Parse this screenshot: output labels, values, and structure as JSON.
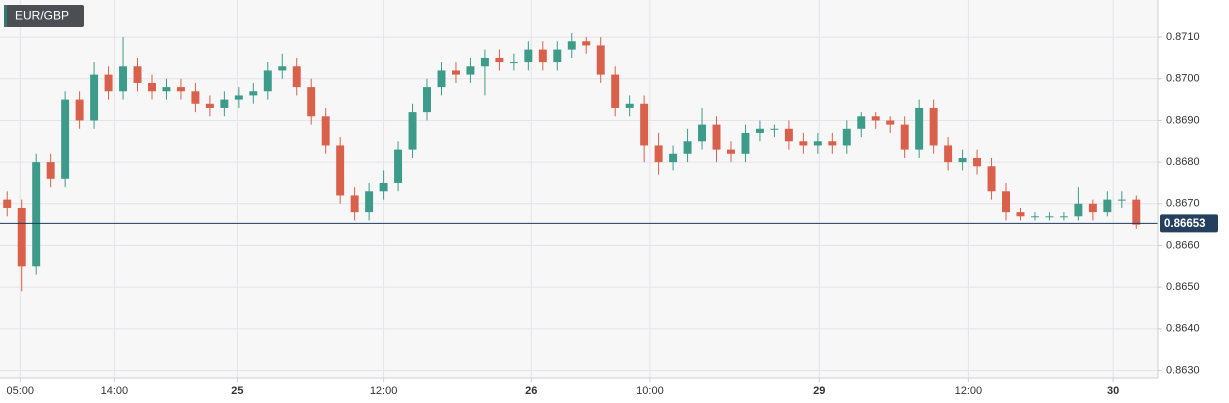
{
  "chart_data": {
    "type": "candlestick",
    "title": "EUR/GBP",
    "up_color": "#3c9c89",
    "down_color": "#d9604a",
    "grid": true,
    "xlim": [
      0,
      80
    ],
    "xticks": [
      {
        "value": 1.4,
        "label": "05:00"
      },
      {
        "value": 7.9,
        "label": "14:00"
      },
      {
        "value": 16.4,
        "label": "25"
      },
      {
        "value": 26.5,
        "label": "12:00"
      },
      {
        "value": 36.7,
        "label": "26"
      },
      {
        "value": 44.9,
        "label": "10:00"
      },
      {
        "value": 56.6,
        "label": "29"
      },
      {
        "value": 66.9,
        "label": "12:00"
      },
      {
        "value": 76.9,
        "label": "30"
      }
    ],
    "ylim": [
      0.86282,
      0.87189
    ],
    "yticks": [
      {
        "value": 0.863,
        "label": "0.8630"
      },
      {
        "value": 0.864,
        "label": "0.8640"
      },
      {
        "value": 0.865,
        "label": "0.8650"
      },
      {
        "value": 0.866,
        "label": "0.8660"
      },
      {
        "value": 0.867,
        "label": "0.8670"
      },
      {
        "value": 0.868,
        "label": "0.8680"
      },
      {
        "value": 0.869,
        "label": "0.8690"
      },
      {
        "value": 0.87,
        "label": "0.8700"
      },
      {
        "value": 0.871,
        "label": "0.8710"
      }
    ],
    "last_price": 0.86653,
    "x": [
      0.5,
      1.5,
      2.5,
      3.5,
      4.5,
      5.5,
      6.5,
      7.5,
      8.5,
      9.5,
      10.5,
      11.5,
      12.5,
      13.5,
      14.5,
      15.5,
      16.5,
      17.5,
      18.5,
      19.5,
      20.5,
      21.5,
      22.5,
      23.5,
      24.5,
      25.5,
      26.5,
      27.5,
      28.5,
      29.5,
      30.5,
      31.5,
      32.5,
      33.5,
      34.5,
      35.5,
      36.5,
      37.5,
      38.5,
      39.5,
      40.5,
      41.5,
      42.5,
      43.5,
      44.5,
      45.5,
      46.5,
      47.5,
      48.5,
      49.5,
      50.5,
      51.5,
      52.5,
      53.5,
      54.5,
      55.5,
      56.5,
      57.5,
      58.5,
      59.5,
      60.5,
      61.5,
      62.5,
      63.5,
      64.5,
      65.5,
      66.5,
      67.5,
      68.5,
      69.5,
      70.5,
      71.5,
      72.5,
      73.5,
      74.5,
      75.5,
      76.5,
      77.5,
      78.5
    ],
    "open": [
      0.8671,
      0.8669,
      0.8655,
      0.868,
      0.8676,
      0.8695,
      0.869,
      0.8701,
      0.8697,
      0.8703,
      0.8699,
      0.8697,
      0.8698,
      0.8697,
      0.8694,
      0.8693,
      0.8695,
      0.8696,
      0.8697,
      0.8702,
      0.8703,
      0.8698,
      0.8691,
      0.8684,
      0.8672,
      0.8668,
      0.8673,
      0.8675,
      0.8683,
      0.8692,
      0.8698,
      0.8702,
      0.8701,
      0.8703,
      0.8705,
      0.8704,
      0.8704,
      0.8707,
      0.8704,
      0.8707,
      0.8709,
      0.8708,
      0.8701,
      0.8693,
      0.8694,
      0.8684,
      0.868,
      0.8682,
      0.8685,
      0.8689,
      0.8683,
      0.8682,
      0.8687,
      0.8688,
      0.8688,
      0.8685,
      0.8684,
      0.8685,
      0.8684,
      0.8688,
      0.8691,
      0.869,
      0.8689,
      0.8683,
      0.8693,
      0.8684,
      0.868,
      0.8681,
      0.8679,
      0.8673,
      0.8668,
      0.8667,
      0.8667,
      0.8667,
      0.8667,
      0.867,
      0.8668,
      0.8671,
      0.8671
    ],
    "high": [
      0.8673,
      0.8671,
      0.8682,
      0.8682,
      0.8697,
      0.8697,
      0.8704,
      0.8703,
      0.871,
      0.8705,
      0.8701,
      0.87,
      0.87,
      0.8699,
      0.8696,
      0.8697,
      0.8698,
      0.8699,
      0.8704,
      0.8706,
      0.8705,
      0.87,
      0.8693,
      0.8686,
      0.8674,
      0.8675,
      0.8678,
      0.8685,
      0.8694,
      0.87,
      0.8704,
      0.8704,
      0.8705,
      0.8707,
      0.8707,
      0.8706,
      0.8709,
      0.8709,
      0.8709,
      0.8711,
      0.871,
      0.871,
      0.8703,
      0.8696,
      0.8696,
      0.8687,
      0.8684,
      0.8688,
      0.8693,
      0.8691,
      0.8685,
      0.8689,
      0.869,
      0.8689,
      0.869,
      0.8687,
      0.8687,
      0.8687,
      0.869,
      0.8692,
      0.8692,
      0.8691,
      0.8691,
      0.8695,
      0.8695,
      0.8686,
      0.8683,
      0.8683,
      0.8681,
      0.8675,
      0.8669,
      0.8668,
      0.8668,
      0.8668,
      0.8674,
      0.8671,
      0.8673,
      0.8673,
      0.8672
    ],
    "low": [
      0.8667,
      0.8649,
      0.8653,
      0.8674,
      0.8674,
      0.8688,
      0.8688,
      0.8695,
      0.8695,
      0.8697,
      0.8695,
      0.8695,
      0.8695,
      0.8692,
      0.8691,
      0.8691,
      0.8693,
      0.8694,
      0.8695,
      0.87,
      0.8696,
      0.8689,
      0.8682,
      0.867,
      0.8666,
      0.8666,
      0.8671,
      0.8673,
      0.8681,
      0.869,
      0.8696,
      0.8699,
      0.8699,
      0.8696,
      0.8702,
      0.8702,
      0.8702,
      0.8702,
      0.8702,
      0.8705,
      0.8706,
      0.8699,
      0.8691,
      0.8691,
      0.868,
      0.8677,
      0.8678,
      0.868,
      0.8683,
      0.868,
      0.868,
      0.868,
      0.8685,
      0.8686,
      0.8683,
      0.8682,
      0.8682,
      0.8682,
      0.8682,
      0.8686,
      0.8688,
      0.8687,
      0.8681,
      0.8681,
      0.8682,
      0.8678,
      0.8678,
      0.8677,
      0.8671,
      0.8666,
      0.8666,
      0.8666,
      0.8666,
      0.8666,
      0.8666,
      0.8666,
      0.8667,
      0.8669,
      0.8664
    ],
    "close": [
      0.8669,
      0.8655,
      0.868,
      0.8676,
      0.8695,
      0.869,
      0.8701,
      0.8697,
      0.8703,
      0.8699,
      0.8697,
      0.8698,
      0.8697,
      0.8694,
      0.8693,
      0.8695,
      0.8696,
      0.8697,
      0.8702,
      0.8703,
      0.8698,
      0.8691,
      0.8684,
      0.8672,
      0.8668,
      0.8673,
      0.8675,
      0.8683,
      0.8692,
      0.8698,
      0.8702,
      0.8701,
      0.8703,
      0.8705,
      0.8704,
      0.8704,
      0.8707,
      0.8704,
      0.8707,
      0.8709,
      0.8708,
      0.8701,
      0.8693,
      0.8694,
      0.8684,
      0.868,
      0.8682,
      0.8685,
      0.8689,
      0.8683,
      0.8682,
      0.8687,
      0.8688,
      0.8688,
      0.8685,
      0.8684,
      0.8685,
      0.8684,
      0.8688,
      0.8691,
      0.869,
      0.8689,
      0.8683,
      0.8693,
      0.8684,
      0.868,
      0.8681,
      0.8679,
      0.8673,
      0.8668,
      0.8667,
      0.8667,
      0.8667,
      0.8667,
      0.867,
      0.8668,
      0.8671,
      0.8671,
      0.8665
    ]
  }
}
